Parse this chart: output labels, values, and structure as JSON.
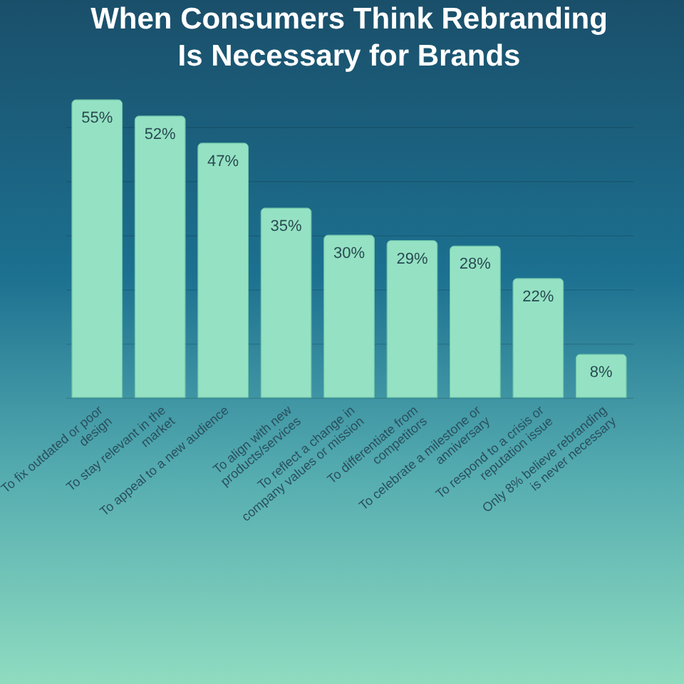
{
  "chart_data": {
    "type": "bar",
    "title": "When Consumers Think Rebranding Is Necessary for Brands",
    "categories": [
      "To fix outdated or poor design",
      "To stay relevant in the market",
      "To appeal to a new audience",
      "To align with new products/services",
      "To reflect a change in company values or mission",
      "To differentiate from competitors",
      "To celebrate a milestone or anniversary",
      "To respond to a crisis or reputation issue",
      "Only 8% believe rebranding is never necessary"
    ],
    "values": [
      55,
      52,
      47,
      35,
      30,
      29,
      28,
      22,
      8
    ],
    "value_labels": [
      "55%",
      "52%",
      "47%",
      "35%",
      "30%",
      "29%",
      "28%",
      "22%",
      "8%"
    ],
    "color": "#94e2c3",
    "ylim": [
      0,
      55
    ],
    "yticks": [
      0,
      10,
      20,
      30,
      40,
      50
    ],
    "grid": "y",
    "tick_labels": "x"
  }
}
